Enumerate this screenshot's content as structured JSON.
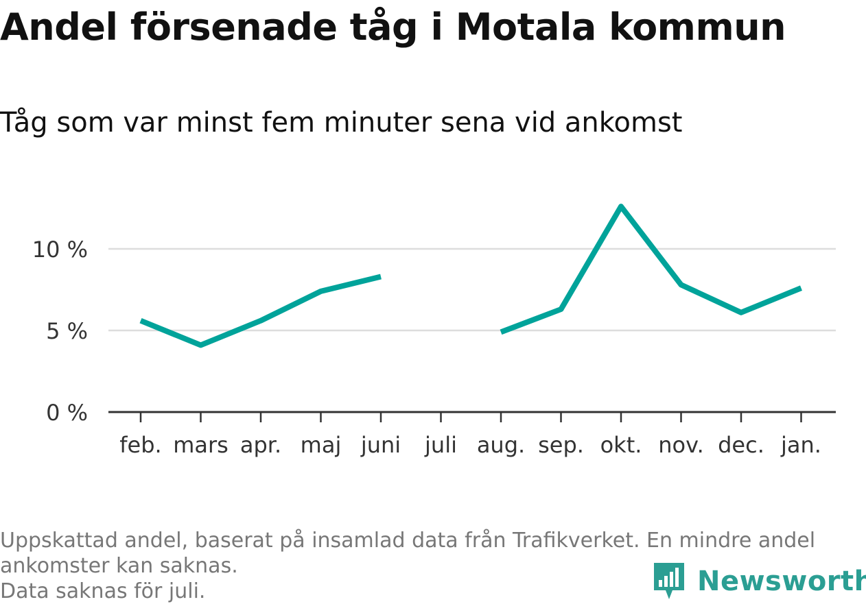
{
  "header": {
    "title": "Andel försenade tåg i Motala kommun",
    "subtitle": "Tåg som var minst fem minuter sena vid ankomst"
  },
  "footnote": {
    "line1": "Uppskattad andel, baserat på insamlad data från Trafikverket. En mindre andel",
    "line2": "ankomster kan saknas.",
    "line3": "Data saknas för juli."
  },
  "brand": {
    "name": "Newsworthy",
    "icon": "bar-chart-speech-bubble-icon",
    "color": "#2b9e93"
  },
  "colors": {
    "line": "#00a39a",
    "grid": "#dddddd",
    "axis": "#333333",
    "tick_text": "#333333"
  },
  "chart_data": {
    "type": "line",
    "title": "Andel försenade tåg i Motala kommun",
    "subtitle": "Tåg som var minst fem minuter sena vid ankomst",
    "categories": [
      "feb.",
      "mars",
      "apr.",
      "maj",
      "juni",
      "juli",
      "aug.",
      "sep.",
      "okt.",
      "nov.",
      "dec.",
      "jan."
    ],
    "series": [
      {
        "values": [
          5.6,
          4.1,
          5.6,
          7.4,
          8.3,
          null,
          4.9,
          6.3,
          12.6,
          7.8,
          6.1,
          7.6
        ]
      }
    ],
    "yticks": [
      0,
      5,
      10
    ],
    "ytick_labels": [
      "0 %",
      "5 %",
      "10 %"
    ],
    "ylim": [
      0,
      13.5
    ],
    "grid": true,
    "legend": "none"
  }
}
